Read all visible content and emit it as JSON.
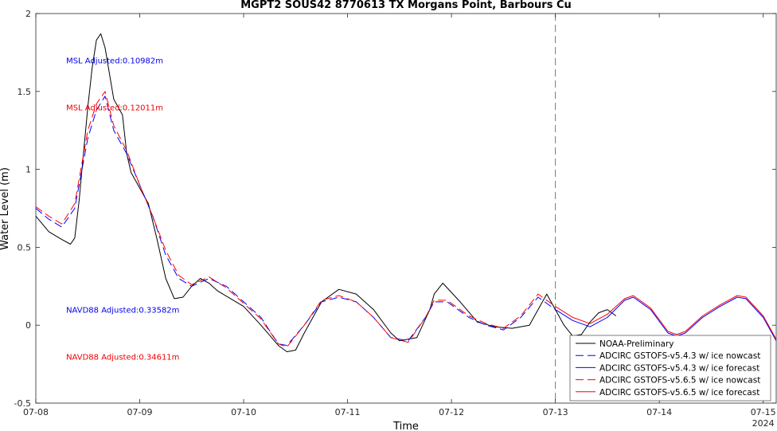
{
  "chart_data": {
    "type": "line",
    "title": "MGPT2 SOUS42 8770613 TX Morgans Point, Barbours Cu",
    "xlabel": "Time",
    "ylabel": "Water Level (m)",
    "xlim": [
      "2024-07-08T00:00",
      "2024-07-15T03:00"
    ],
    "ylim": [
      -0.5,
      2
    ],
    "x_ticks": [
      {
        "x": "2024-07-08T00:00",
        "label": "07-08"
      },
      {
        "x": "2024-07-09T00:00",
        "label": "07-09"
      },
      {
        "x": "2024-07-10T00:00",
        "label": "07-10"
      },
      {
        "x": "2024-07-11T00:00",
        "label": "07-11"
      },
      {
        "x": "2024-07-12T00:00",
        "label": "07-12"
      },
      {
        "x": "2024-07-13T00:00",
        "label": "07-13"
      },
      {
        "x": "2024-07-14T00:00",
        "label": "07-14"
      },
      {
        "x": "2024-07-15T00:00",
        "label": "07-15"
      }
    ],
    "x_year_label": "2024",
    "y_ticks": [
      {
        "y": -0.5,
        "label": "-0.5"
      },
      {
        "y": 0,
        "label": "0"
      },
      {
        "y": 0.5,
        "label": "0.5"
      },
      {
        "y": 1,
        "label": "1"
      },
      {
        "y": 1.5,
        "label": "1.5"
      },
      {
        "y": 2,
        "label": "2"
      }
    ],
    "grid": false,
    "legend_position": "bottom-right",
    "vline": {
      "x": "2024-07-13T00:00",
      "style": "dashed",
      "color": "#777777"
    },
    "annotations": [
      {
        "text": "MSL Adjusted:0.10982m",
        "x": "2024-07-08T07:00",
        "y": 1.7,
        "color": "#0000ee"
      },
      {
        "text": "MSL Adjusted:0.12011m",
        "x": "2024-07-08T07:00",
        "y": 1.4,
        "color": "#ee0000"
      },
      {
        "text": "NAVD88 Adjusted:0.33582m",
        "x": "2024-07-08T07:00",
        "y": 0.1,
        "color": "#0000ee"
      },
      {
        "text": "NAVD88 Adjusted:0.34611m",
        "x": "2024-07-08T07:00",
        "y": -0.2,
        "color": "#ee0000"
      }
    ],
    "series": [
      {
        "name": "NOAA-Preliminary",
        "color": "#000000",
        "dash": "solid",
        "x": [
          "2024-07-08T00:00",
          "2024-07-08T03:00",
          "2024-07-08T06:00",
          "2024-07-08T08:00",
          "2024-07-08T09:00",
          "2024-07-08T10:00",
          "2024-07-08T11:00",
          "2024-07-08T12:00",
          "2024-07-08T13:00",
          "2024-07-08T14:00",
          "2024-07-08T15:00",
          "2024-07-08T16:00",
          "2024-07-08T18:00",
          "2024-07-08T20:00",
          "2024-07-08T21:00",
          "2024-07-08T22:00",
          "2024-07-09T00:00",
          "2024-07-09T02:00",
          "2024-07-09T04:00",
          "2024-07-09T06:00",
          "2024-07-09T08:00",
          "2024-07-09T10:00",
          "2024-07-09T12:00",
          "2024-07-09T14:00",
          "2024-07-09T16:00",
          "2024-07-09T18:00",
          "2024-07-10T00:00",
          "2024-07-10T04:00",
          "2024-07-10T08:00",
          "2024-07-10T10:00",
          "2024-07-10T12:00",
          "2024-07-10T14:00",
          "2024-07-10T18:00",
          "2024-07-10T22:00",
          "2024-07-11T02:00",
          "2024-07-11T06:00",
          "2024-07-11T10:00",
          "2024-07-11T12:00",
          "2024-07-11T16:00",
          "2024-07-11T19:00",
          "2024-07-11T20:00",
          "2024-07-11T22:00",
          "2024-07-12T02:00",
          "2024-07-12T06:00",
          "2024-07-12T10:00",
          "2024-07-12T14:00",
          "2024-07-12T18:00",
          "2024-07-12T20:00",
          "2024-07-12T22:00",
          "2024-07-13T00:00",
          "2024-07-13T02:00",
          "2024-07-13T04:00",
          "2024-07-13T06:00",
          "2024-07-13T08:00",
          "2024-07-13T10:00",
          "2024-07-13T12:00",
          "2024-07-13T14:00"
        ],
        "y": [
          0.7,
          0.6,
          0.55,
          0.52,
          0.56,
          0.8,
          1.1,
          1.4,
          1.65,
          1.83,
          1.87,
          1.78,
          1.45,
          1.35,
          1.1,
          0.98,
          0.88,
          0.78,
          0.55,
          0.3,
          0.17,
          0.18,
          0.25,
          0.3,
          0.27,
          0.22,
          0.12,
          0.0,
          -0.13,
          -0.17,
          -0.16,
          -0.05,
          0.15,
          0.23,
          0.2,
          0.1,
          -0.05,
          -0.1,
          -0.08,
          0.1,
          0.2,
          0.27,
          0.15,
          0.02,
          -0.01,
          -0.02,
          0.0,
          0.1,
          0.2,
          0.1,
          0.0,
          -0.07,
          -0.06,
          0.02,
          0.08,
          0.1,
          0.06
        ]
      },
      {
        "name": "ADCIRC GSTOFS-v5.4.3 w/ ice nowcast",
        "color": "#0000ff",
        "dash": "dashed",
        "x": [
          "2024-07-08T00:00",
          "2024-07-08T03:00",
          "2024-07-08T06:00",
          "2024-07-08T09:00",
          "2024-07-08T12:00",
          "2024-07-08T14:00",
          "2024-07-08T16:00",
          "2024-07-08T18:00",
          "2024-07-08T21:00",
          "2024-07-09T00:00",
          "2024-07-09T03:00",
          "2024-07-09T06:00",
          "2024-07-09T09:00",
          "2024-07-09T12:00",
          "2024-07-09T16:00",
          "2024-07-09T20:00",
          "2024-07-10T00:00",
          "2024-07-10T04:00",
          "2024-07-10T08:00",
          "2024-07-10T10:00",
          "2024-07-10T14:00",
          "2024-07-10T18:00",
          "2024-07-10T22:00",
          "2024-07-11T02:00",
          "2024-07-11T06:00",
          "2024-07-11T10:00",
          "2024-07-11T14:00",
          "2024-07-11T18:00",
          "2024-07-11T20:00",
          "2024-07-11T23:00",
          "2024-07-12T04:00",
          "2024-07-12T08:00",
          "2024-07-12T12:00",
          "2024-07-12T16:00",
          "2024-07-12T20:00",
          "2024-07-13T00:00"
        ],
        "y": [
          0.75,
          0.68,
          0.63,
          0.75,
          1.2,
          1.38,
          1.47,
          1.25,
          1.1,
          0.9,
          0.7,
          0.45,
          0.3,
          0.25,
          0.3,
          0.25,
          0.15,
          0.05,
          -0.12,
          -0.13,
          0.0,
          0.15,
          0.18,
          0.15,
          0.05,
          -0.08,
          -0.1,
          0.05,
          0.15,
          0.15,
          0.05,
          0.0,
          -0.03,
          0.05,
          0.18,
          0.1
        ]
      },
      {
        "name": "ADCIRC GSTOFS-v5.4.3 w/ ice forecast",
        "color": "#0000ff",
        "dash": "solid",
        "x": [
          "2024-07-13T00:00",
          "2024-07-13T04:00",
          "2024-07-13T08:00",
          "2024-07-13T12:00",
          "2024-07-13T16:00",
          "2024-07-13T18:00",
          "2024-07-13T22:00",
          "2024-07-14T02:00",
          "2024-07-14T04:00",
          "2024-07-14T06:00",
          "2024-07-14T10:00",
          "2024-07-14T14:00",
          "2024-07-14T18:00",
          "2024-07-14T20:00",
          "2024-07-15T00:00",
          "2024-07-15T03:00"
        ],
        "y": [
          0.1,
          0.03,
          -0.01,
          0.05,
          0.16,
          0.18,
          0.1,
          -0.05,
          -0.07,
          -0.05,
          0.05,
          0.12,
          0.18,
          0.17,
          0.05,
          -0.1
        ]
      },
      {
        "name": "ADCIRC GSTOFS-v5.6.5 w/ ice nowcast",
        "color": "#ff0000",
        "dash": "dashed",
        "x": [
          "2024-07-08T00:00",
          "2024-07-08T03:00",
          "2024-07-08T06:00",
          "2024-07-08T09:00",
          "2024-07-08T12:00",
          "2024-07-08T14:00",
          "2024-07-08T16:00",
          "2024-07-08T18:00",
          "2024-07-08T21:00",
          "2024-07-09T00:00",
          "2024-07-09T03:00",
          "2024-07-09T06:00",
          "2024-07-09T09:00",
          "2024-07-09T12:00",
          "2024-07-09T16:00",
          "2024-07-09T20:00",
          "2024-07-10T00:00",
          "2024-07-10T04:00",
          "2024-07-10T08:00",
          "2024-07-10T10:00",
          "2024-07-10T14:00",
          "2024-07-10T18:00",
          "2024-07-10T22:00",
          "2024-07-11T02:00",
          "2024-07-11T06:00",
          "2024-07-11T10:00",
          "2024-07-11T14:00",
          "2024-07-11T18:00",
          "2024-07-11T20:00",
          "2024-07-11T23:00",
          "2024-07-12T04:00",
          "2024-07-12T08:00",
          "2024-07-12T12:00",
          "2024-07-12T16:00",
          "2024-07-12T20:00",
          "2024-07-13T00:00"
        ],
        "y": [
          0.76,
          0.7,
          0.65,
          0.78,
          1.25,
          1.42,
          1.5,
          1.28,
          1.12,
          0.9,
          0.7,
          0.48,
          0.32,
          0.26,
          0.31,
          0.24,
          0.14,
          0.04,
          -0.12,
          -0.14,
          0.0,
          0.16,
          0.19,
          0.15,
          0.05,
          -0.08,
          -0.11,
          0.05,
          0.16,
          0.16,
          0.06,
          0.01,
          -0.02,
          0.06,
          0.2,
          0.12
        ]
      },
      {
        "name": "ADCIRC GSTOFS-v5.6.5 w/ ice forecast",
        "color": "#ff0000",
        "dash": "solid",
        "x": [
          "2024-07-13T00:00",
          "2024-07-13T04:00",
          "2024-07-13T08:00",
          "2024-07-13T12:00",
          "2024-07-13T16:00",
          "2024-07-13T18:00",
          "2024-07-13T22:00",
          "2024-07-14T02:00",
          "2024-07-14T04:00",
          "2024-07-14T06:00",
          "2024-07-14T10:00",
          "2024-07-14T14:00",
          "2024-07-14T18:00",
          "2024-07-14T20:00",
          "2024-07-15T00:00",
          "2024-07-15T03:00"
        ],
        "y": [
          0.12,
          0.05,
          0.01,
          0.07,
          0.17,
          0.19,
          0.11,
          -0.04,
          -0.06,
          -0.04,
          0.06,
          0.13,
          0.19,
          0.18,
          0.06,
          -0.09
        ]
      }
    ]
  }
}
